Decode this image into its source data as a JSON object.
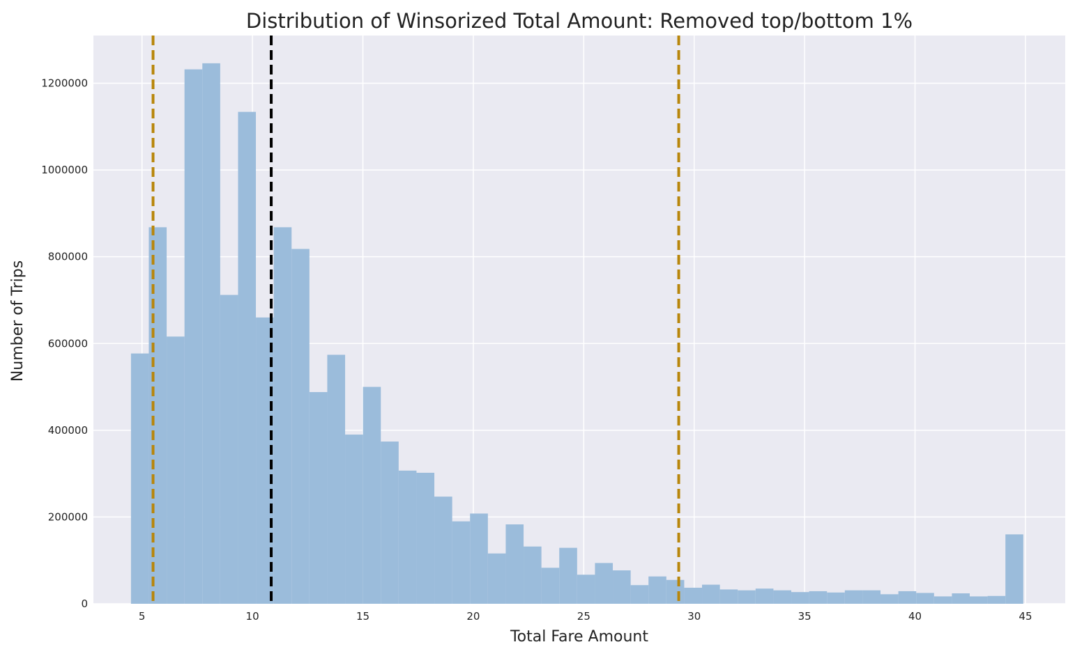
{
  "chart_data": {
    "type": "bar",
    "title": "Distribution of Winsorized Total Amount: Removed top/bottom 1%",
    "xlabel": "Total Fare Amount",
    "ylabel": "Number of Trips",
    "xlim": [
      2.8,
      46.8
    ],
    "ylim": [
      0,
      1310000
    ],
    "x_ticks": [
      5,
      10,
      15,
      20,
      25,
      30,
      35,
      40,
      45
    ],
    "y_ticks": [
      0,
      200000,
      400000,
      600000,
      800000,
      1000000,
      1200000
    ],
    "grid": true,
    "bar_color": "#9bbcdb",
    "background_color": "#eaeaf2",
    "bins": {
      "start": 4.5,
      "width": 0.808,
      "counts": [
        577000,
        868000,
        616000,
        1232000,
        1246000,
        712000,
        1134000,
        660000,
        868000,
        818000,
        488000,
        574000,
        390000,
        500000,
        374000,
        307000,
        302000,
        247000,
        190000,
        208000,
        116000,
        183000,
        132000,
        83000,
        129000,
        67000,
        94000,
        77000,
        43000,
        63000,
        55000,
        37000,
        44000,
        33000,
        31000,
        35000,
        31000,
        27000,
        29000,
        26000,
        31000,
        31000,
        22000,
        29000,
        25000,
        17000,
        24000,
        17000,
        18000,
        160000
      ]
    },
    "vlines": [
      {
        "x": 5.5,
        "color": "#b8860b",
        "style": "dashed"
      },
      {
        "x": 10.85,
        "color": "#000000",
        "style": "dashed"
      },
      {
        "x": 29.3,
        "color": "#b8860b",
        "style": "dashed"
      }
    ]
  }
}
